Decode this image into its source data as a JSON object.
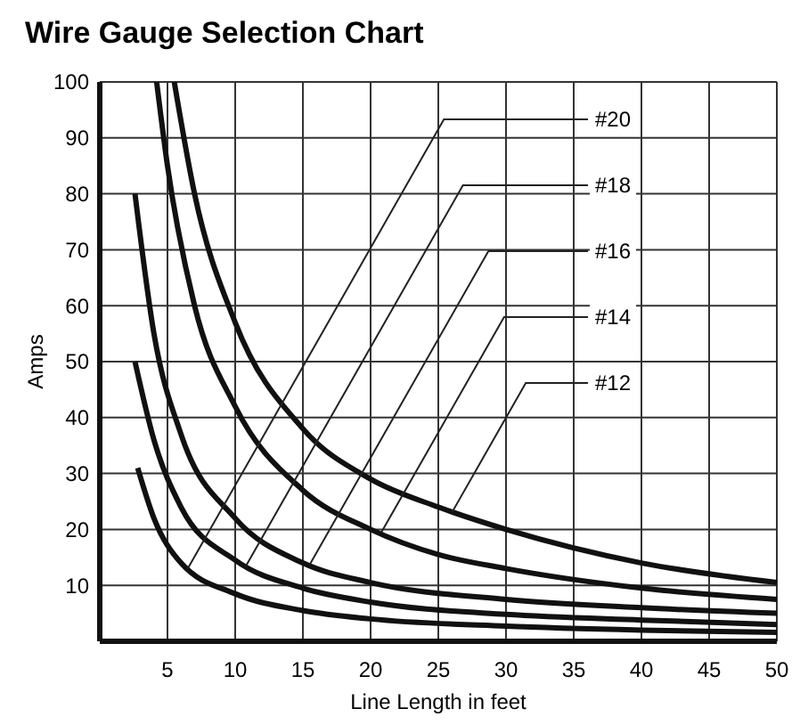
{
  "chart_data": {
    "type": "line",
    "title": "Wire Gauge Selection Chart",
    "xlabel": "Line Length in feet",
    "ylabel": "Amps",
    "xlim": [
      0,
      50
    ],
    "ylim": [
      0,
      100
    ],
    "xticks": [
      5,
      10,
      15,
      20,
      25,
      30,
      35,
      40,
      45,
      50
    ],
    "yticks": [
      10,
      20,
      30,
      40,
      50,
      60,
      70,
      80,
      90,
      100
    ],
    "grid": true,
    "marker": "none",
    "line_style": "solid",
    "series": [
      {
        "x": [
          2.8,
          4,
          6,
          10,
          15,
          20,
          30,
          40,
          50
        ],
        "values": [
          31,
          22,
          14,
          8.5,
          5.5,
          4,
          2.7,
          2,
          1.6
        ],
        "color": "#111111"
      },
      {
        "x": [
          2.6,
          4,
          6,
          10,
          15,
          20,
          30,
          40,
          50
        ],
        "values": [
          50,
          36,
          24,
          14.5,
          9.5,
          7,
          4.8,
          3.8,
          3
        ],
        "color": "#111111"
      },
      {
        "x": [
          2.6,
          4,
          6,
          10,
          15,
          20,
          30,
          40,
          50
        ],
        "values": [
          80,
          55,
          37,
          22,
          14,
          10.5,
          7.5,
          6,
          5
        ],
        "color": "#111111"
      },
      {
        "x": [
          4.2,
          5,
          7,
          10,
          15,
          20,
          25,
          30,
          40,
          50
        ],
        "values": [
          100,
          85,
          60,
          42,
          27,
          20,
          15.5,
          13,
          9.5,
          7.5
        ],
        "color": "#111111"
      },
      {
        "x": [
          5.5,
          7,
          10,
          15,
          20,
          25,
          30,
          40,
          50
        ],
        "values": [
          100,
          80,
          57,
          38,
          29,
          24,
          20,
          14,
          10.5
        ],
        "color": "#111111"
      }
    ],
    "annotations": [
      {
        "text": "#20",
        "x": 6.5,
        "y": 13
      },
      {
        "text": "#18",
        "x": 10.8,
        "y": 13.5
      },
      {
        "text": "#16",
        "x": 15.5,
        "y": 13.7
      },
      {
        "text": "#14",
        "x": 20.8,
        "y": 19.5
      },
      {
        "text": "#12",
        "x": 26,
        "y": 23
      }
    ]
  }
}
